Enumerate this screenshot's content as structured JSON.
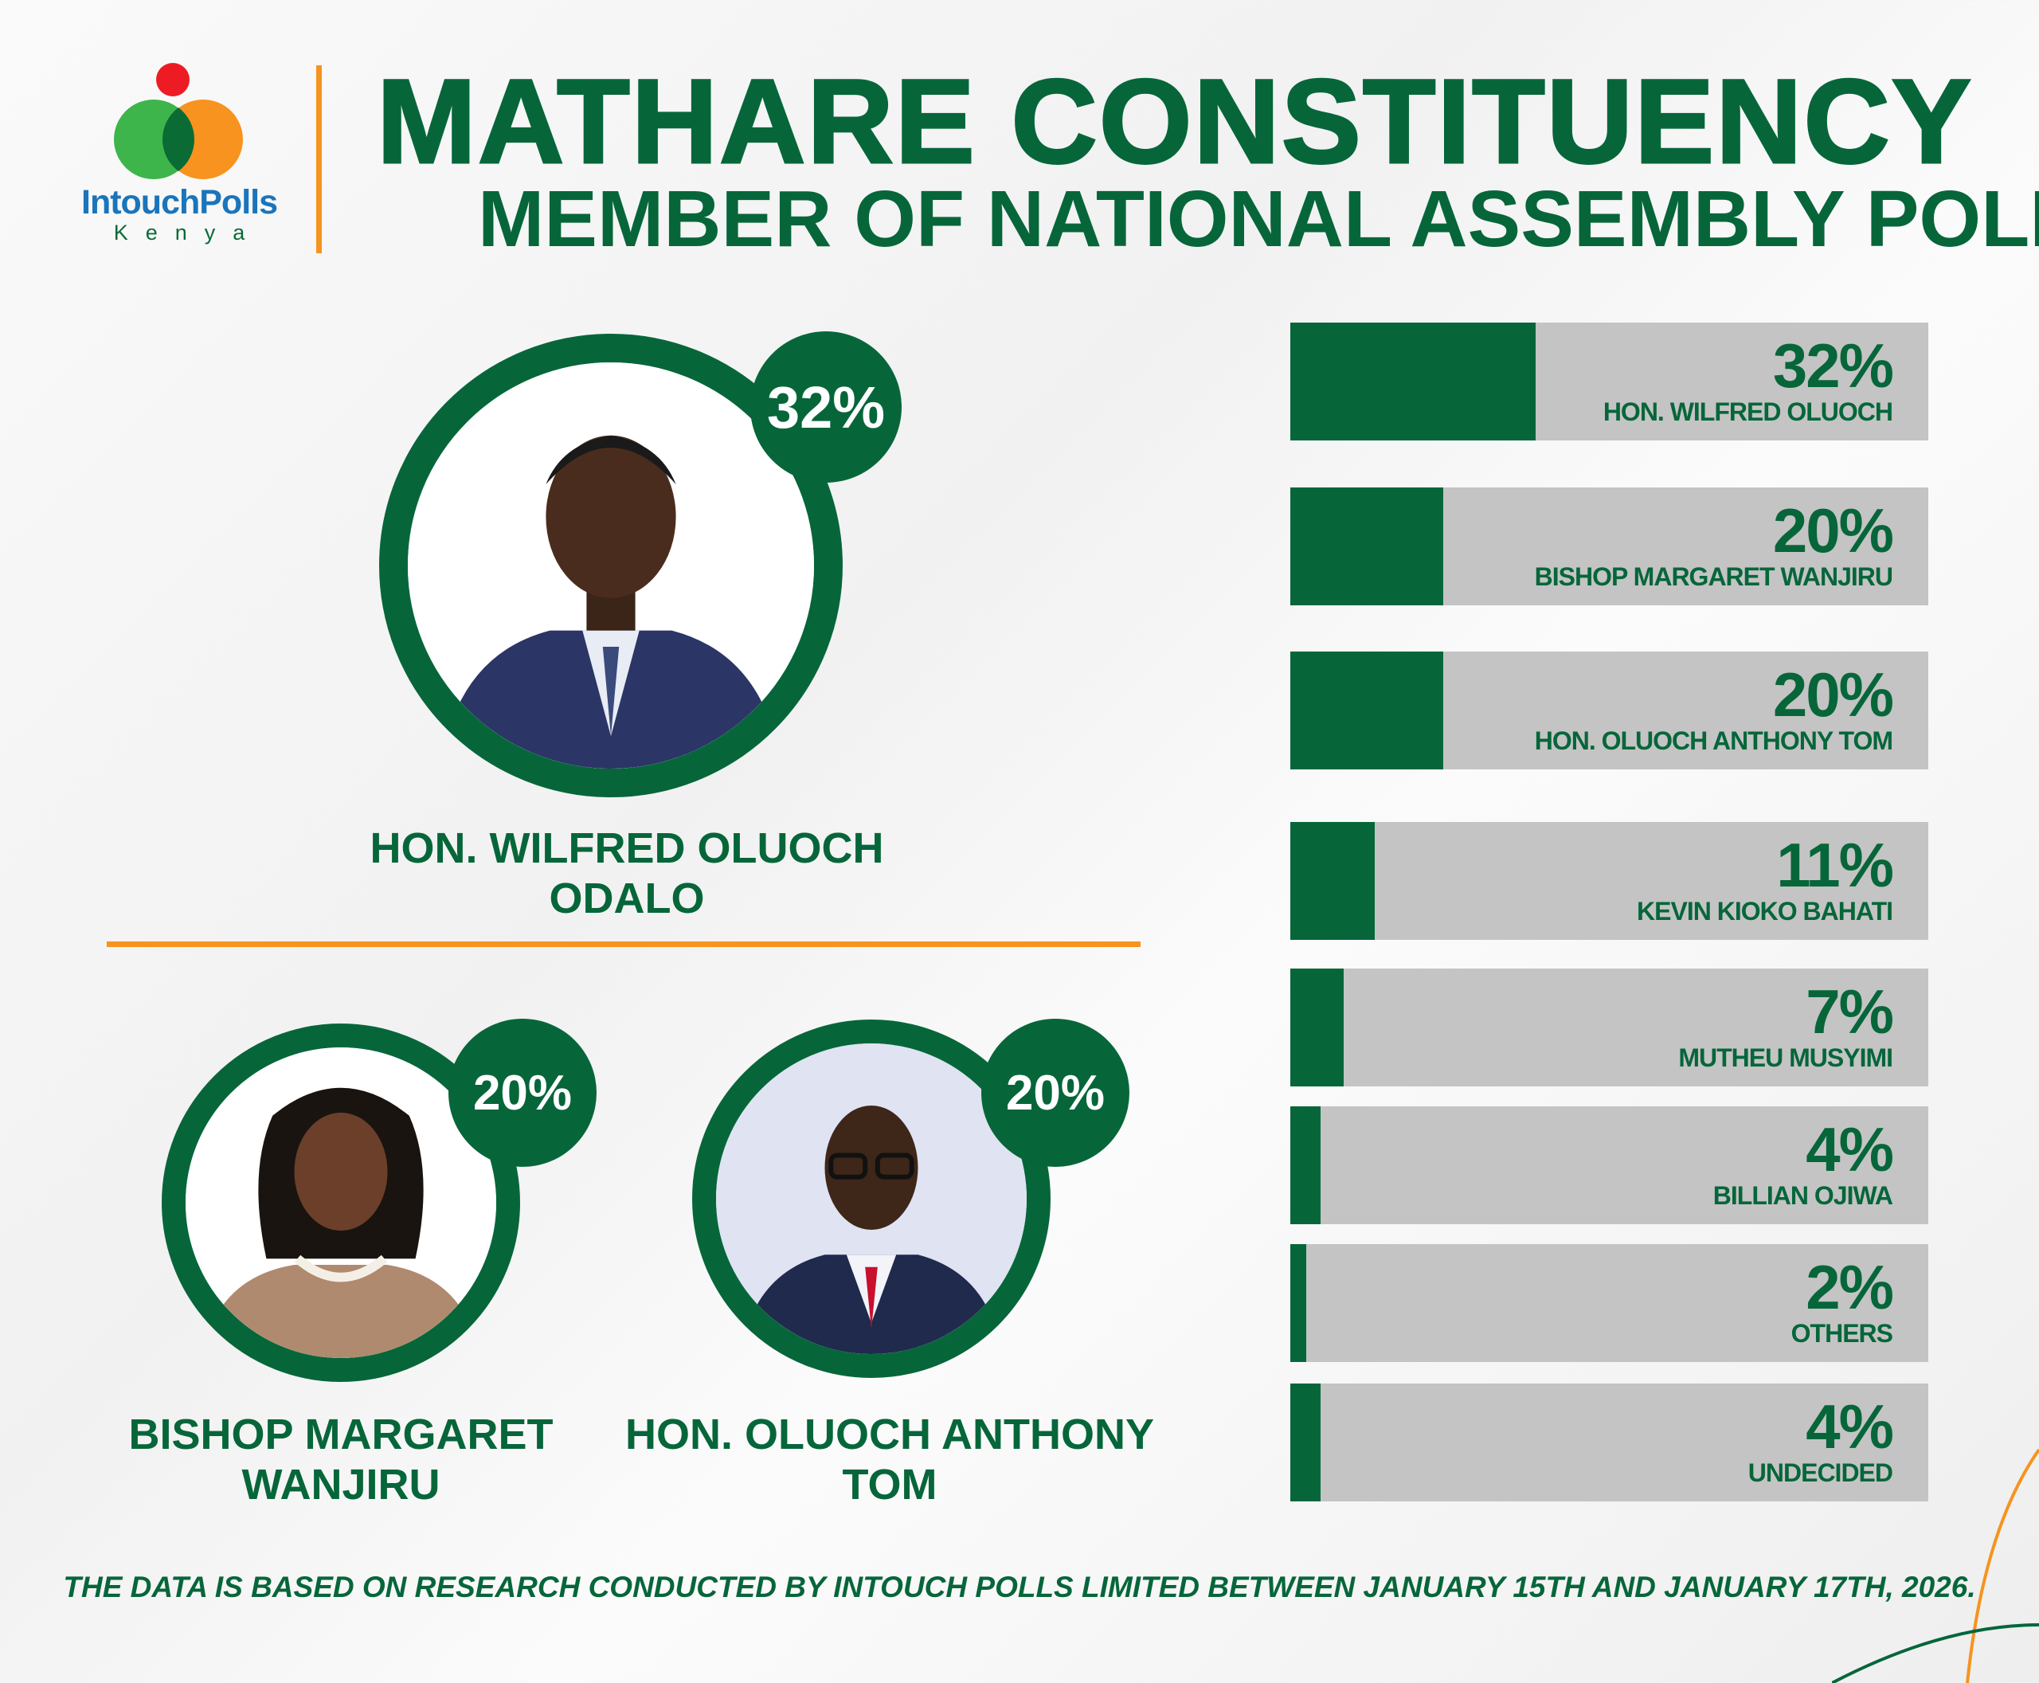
{
  "brand": {
    "name": "IntouchPolls",
    "sub": "Kenya",
    "colors": {
      "green": "#3db54a",
      "orange": "#f7931e",
      "red": "#ed1c24",
      "blue": "#1a75bb"
    }
  },
  "header": {
    "title": "MATHARE CONSTITUENCY",
    "subtitle": "MEMBER OF NATIONAL ASSEMBLY POLL"
  },
  "featured": [
    {
      "name_line1": "HON. WILFRED OLUOCH",
      "name_line2": "ODALO",
      "percent": "32%"
    },
    {
      "name_line1": "BISHOP MARGARET",
      "name_line2": "WANJIRU",
      "percent": "20%"
    },
    {
      "name_line1": "HON. OLUOCH ANTHONY",
      "name_line2": "TOM",
      "percent": "20%"
    }
  ],
  "chart_data": {
    "type": "bar",
    "orientation": "horizontal",
    "categories": [
      "HON. WILFRED OLUOCH",
      "BISHOP MARGARET WANJIRU",
      "HON. OLUOCH ANTHONY TOM",
      "KEVIN KIOKO BAHATI",
      "MUTHEU MUSYIMI",
      "BILLIAN OJIWA",
      "OTHERS",
      "UNDECIDED"
    ],
    "values": [
      32,
      20,
      20,
      11,
      7,
      4,
      2,
      4
    ],
    "labels": [
      "32%",
      "20%",
      "20%",
      "11%",
      "7%",
      "4%",
      "2%",
      "4%"
    ],
    "unit": "%",
    "colors": {
      "fill": "#06663a",
      "track": "#c4c4c4"
    }
  },
  "footer": {
    "note": "THE DATA IS BASED ON RESEARCH CONDUCTED BY INTOUCH POLLS LIMITED BETWEEN JANUARY 15TH AND JANUARY 17TH, 2026."
  }
}
